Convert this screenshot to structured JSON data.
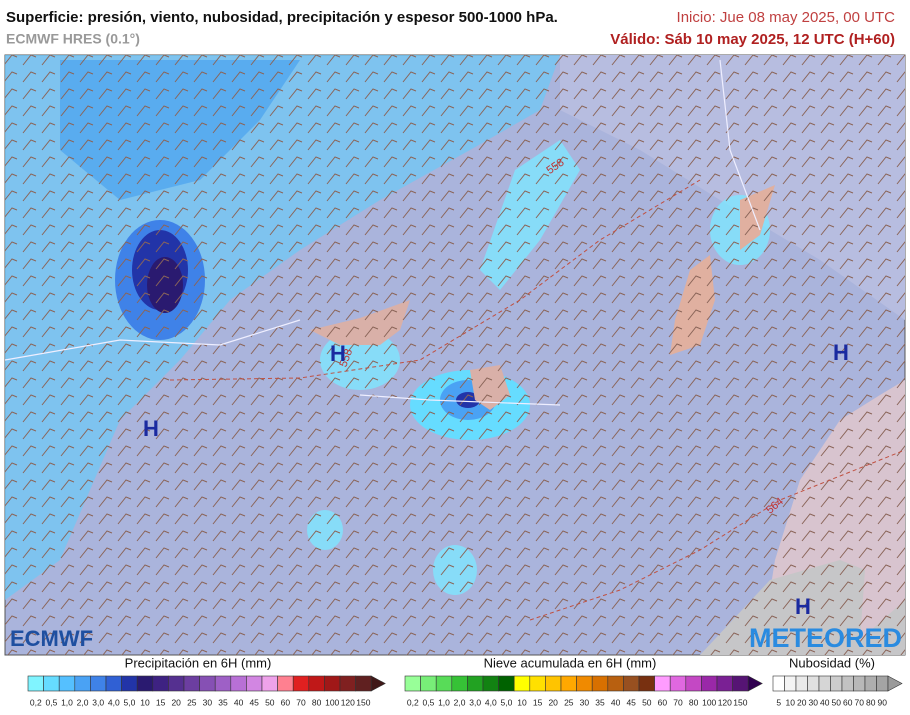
{
  "header": {
    "title": "Superficie: presión, viento, nubosidad, precipitación y espesor 500-1000 hPa.",
    "model": "ECMWF HRES (0.1°)",
    "start": "Inicio: Jue 08 may 2025, 00 UTC",
    "valid": "Válido: Sáb 10 may 2025, 12 UTC (H+60)"
  },
  "map": {
    "highs": [
      "H",
      "H",
      "H",
      "H"
    ],
    "contour_labels": [
      "558",
      "558",
      "564"
    ]
  },
  "logos": {
    "left": "ECMWF",
    "right": "METEORED"
  },
  "legends": [
    {
      "title": "Precipitación en 6H (mm)",
      "labels": [
        "0,2",
        "0,5",
        "1,0",
        "2,0",
        "3,0",
        "4,0",
        "5,0",
        "10",
        "15",
        "20",
        "25",
        "30",
        "35",
        "40",
        "45",
        "50",
        "60",
        "70",
        "80",
        "100",
        "120",
        "150"
      ],
      "colors": [
        "#80f4ff",
        "#66dcff",
        "#55c0ff",
        "#4aa2f4",
        "#3f82e8",
        "#3060d4",
        "#2234a8",
        "#2a1a70",
        "#3e2282",
        "#553090",
        "#6c3ea0",
        "#8650b4",
        "#9e60c6",
        "#b870d6",
        "#d286e2",
        "#eea2ea",
        "#ff8090",
        "#e02020",
        "#c01818",
        "#a01818",
        "#802020",
        "#602020",
        "#401818"
      ]
    },
    {
      "title": "Nieve acumulada en 6H (mm)",
      "labels": [
        "0,2",
        "0,5",
        "1,0",
        "2,0",
        "3,0",
        "4,0",
        "5,0",
        "10",
        "15",
        "20",
        "25",
        "30",
        "35",
        "40",
        "45",
        "50",
        "60",
        "70",
        "80",
        "100",
        "120",
        "150"
      ],
      "colors": [
        "#98ff98",
        "#78ee78",
        "#58dc58",
        "#36c236",
        "#22a222",
        "#128212",
        "#006200",
        "#ffff00",
        "#ffe000",
        "#ffc400",
        "#ffa800",
        "#f08a00",
        "#d87000",
        "#b86010",
        "#985020",
        "#783010",
        "#ff9cff",
        "#e068e0",
        "#c448c4",
        "#9a28a8",
        "#7a2094",
        "#561474",
        "#300050"
      ]
    },
    {
      "title": "Nubosidad (%)",
      "labels": [
        "5",
        "10",
        "20",
        "30",
        "40",
        "50",
        "60",
        "70",
        "80",
        "90"
      ],
      "colors": [
        "#ffffff",
        "#f4f4f4",
        "#eaeaea",
        "#e0e0e0",
        "#d6d6d6",
        "#cccccc",
        "#c2c2c2",
        "#b8b8b8",
        "#aeaeae",
        "#a4a4a4",
        "#9a9a9a"
      ]
    }
  ]
}
